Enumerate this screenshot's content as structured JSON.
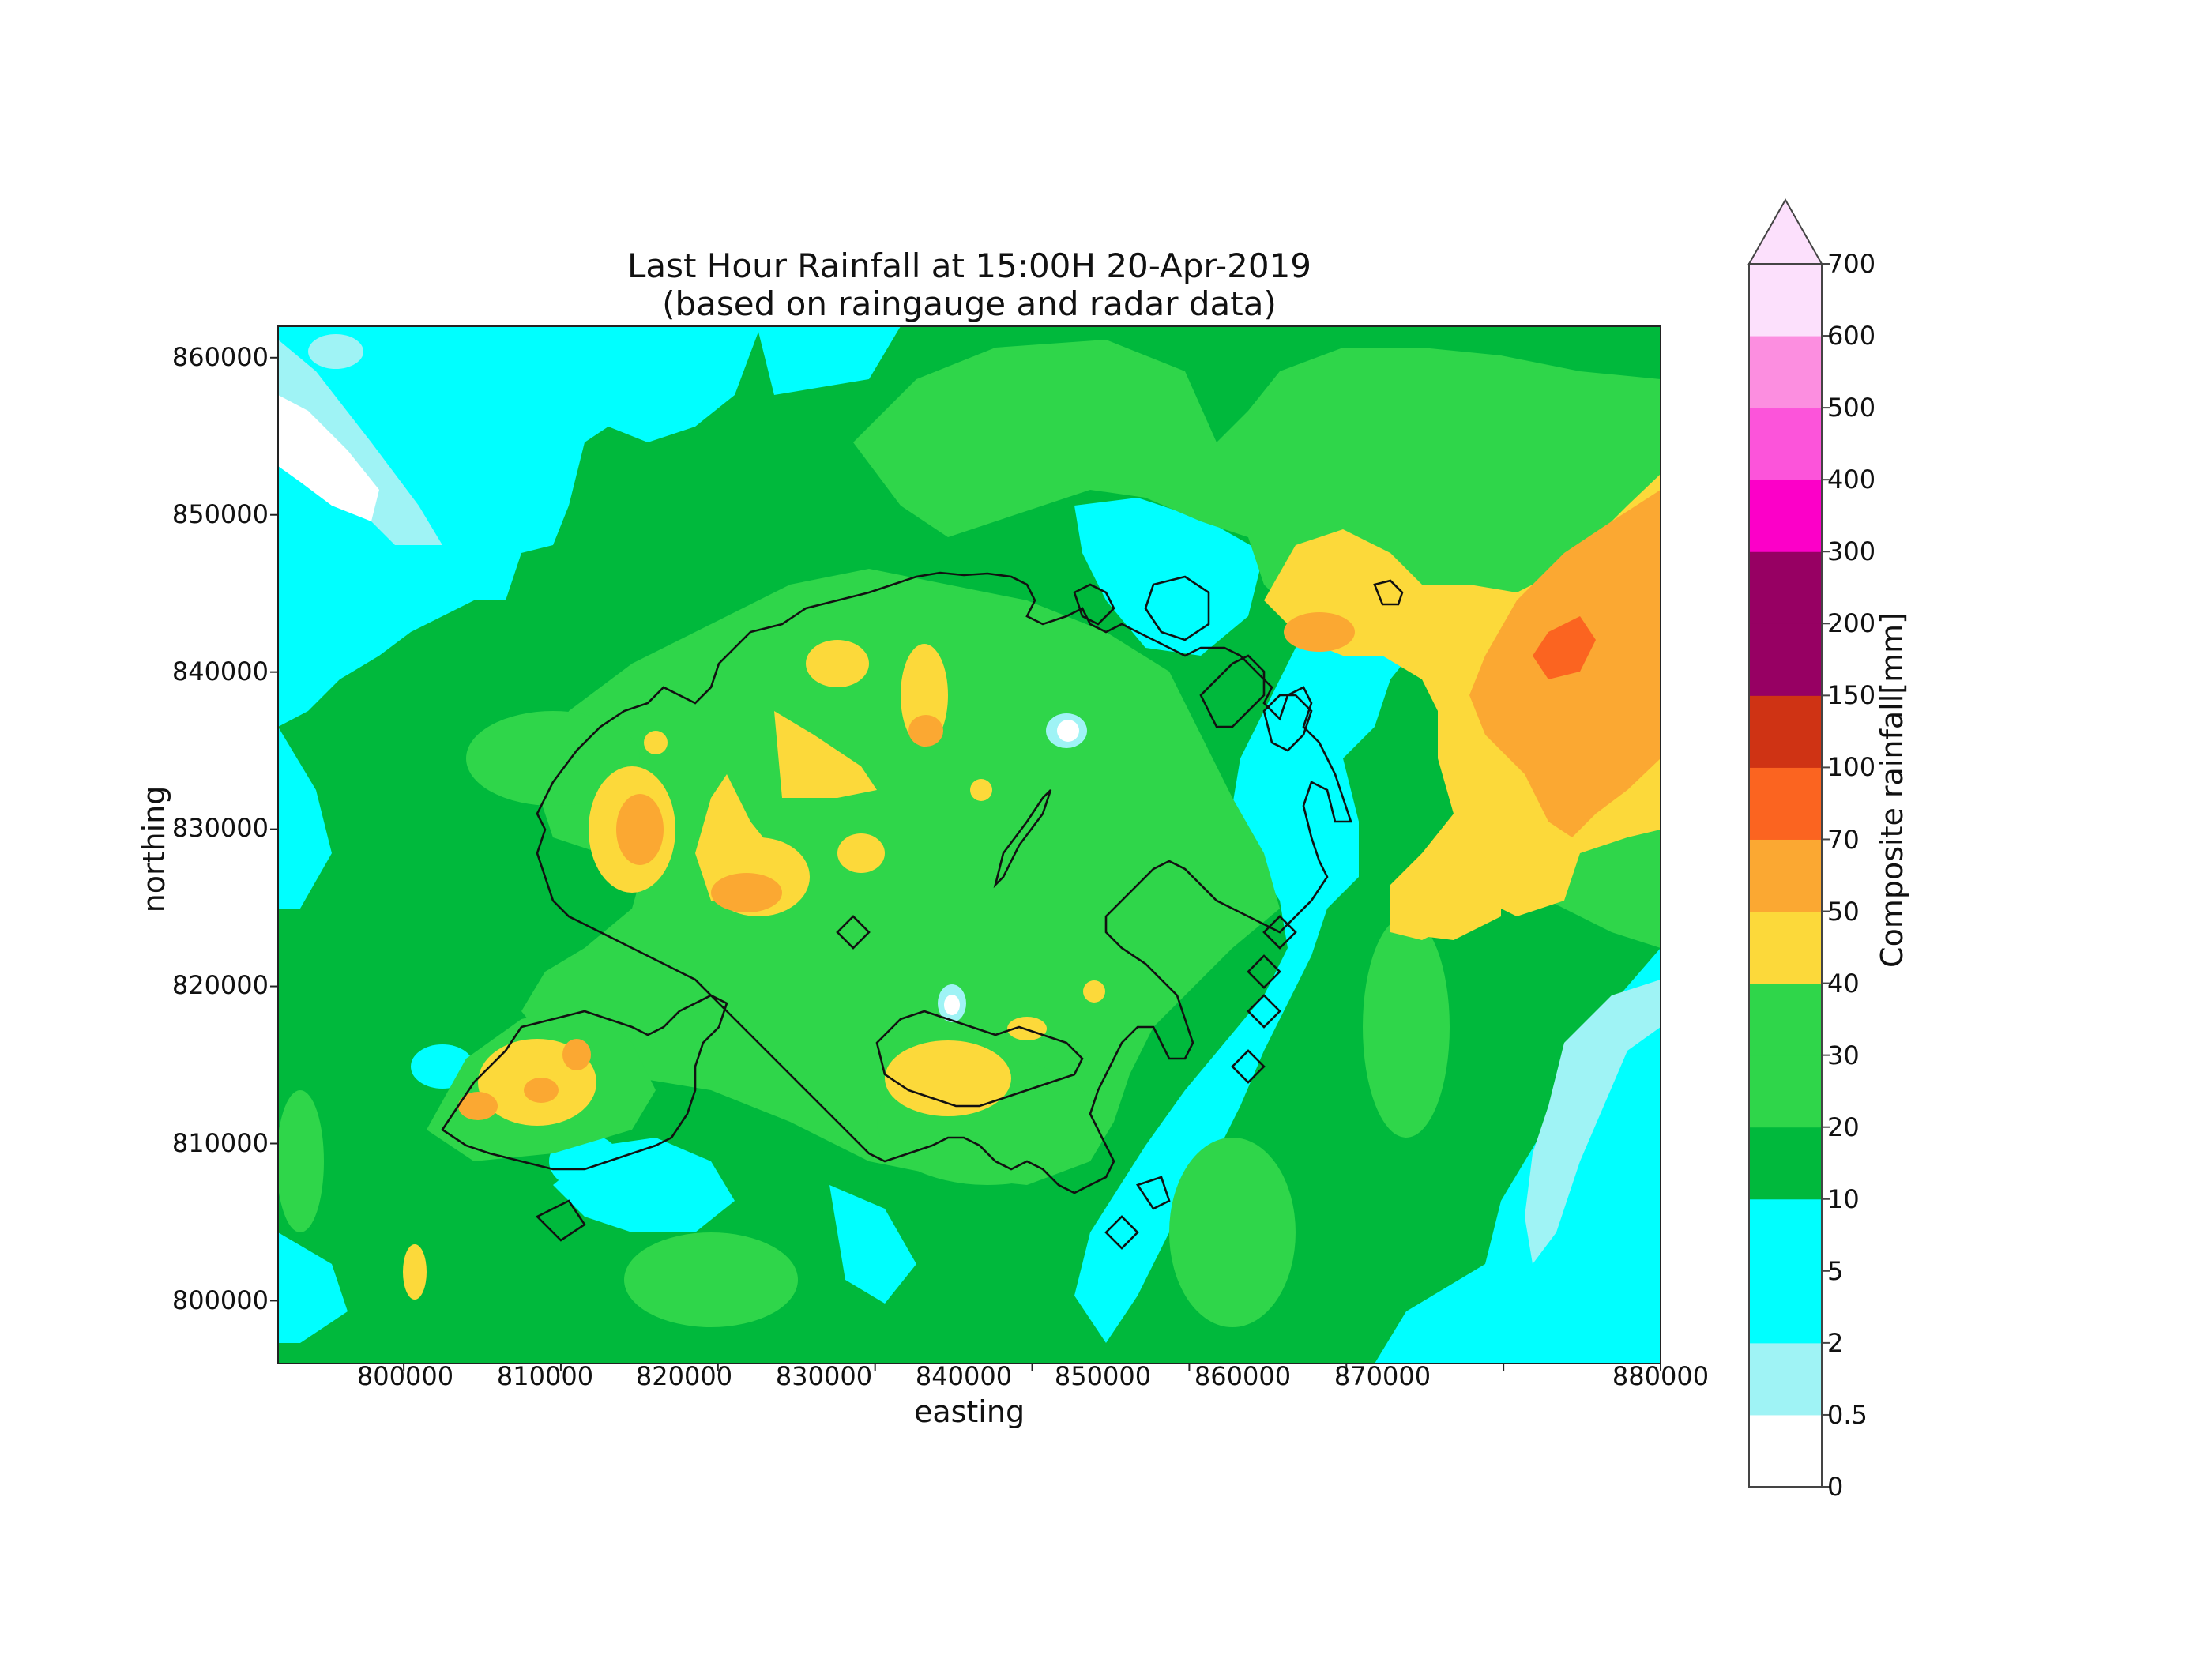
{
  "title": {
    "line1": "Last Hour Rainfall at 15:00H 20-Apr-2019",
    "line2": "(based on raingauge and radar data)"
  },
  "axes": {
    "xlabel": "easting",
    "ylabel": "northing",
    "xlim": [
      792000,
      880000
    ],
    "ylim": [
      796000,
      862000
    ],
    "xticks": [
      "800000",
      "810000",
      "820000",
      "830000",
      "840000",
      "850000",
      "860000",
      "870000",
      "880000"
    ],
    "yticks": [
      "800000",
      "810000",
      "820000",
      "830000",
      "840000",
      "850000",
      "860000"
    ]
  },
  "colorbar": {
    "label": "Composite rainfall[mm]",
    "extend": "max",
    "levels": [
      "0",
      "0.5",
      "2",
      "5",
      "10",
      "20",
      "30",
      "40",
      "50",
      "70",
      "100",
      "150",
      "200",
      "300",
      "400",
      "500",
      "600",
      "700"
    ],
    "colors": [
      "#ffffff",
      "#9ff3f5",
      "#00ffff",
      "#00ffff",
      "#00b93c",
      "#2fd64a",
      "#2fd64a",
      "#fcd93a",
      "#fba832",
      "#fb6420",
      "#cf3314",
      "#970063",
      "#970063",
      "#fc00c8",
      "#fc54da",
      "#fc8ee0",
      "#fce0fc"
    ]
  },
  "map_colors": {
    "lt2": "#9ff3f5",
    "lt10": "#00ffff",
    "lt20": "#00b93c",
    "lt40": "#2fd64a",
    "lt50": "#fcd93a",
    "lt70": "#fba832",
    "lt100": "#fb6420",
    "coast": "#111111"
  }
}
